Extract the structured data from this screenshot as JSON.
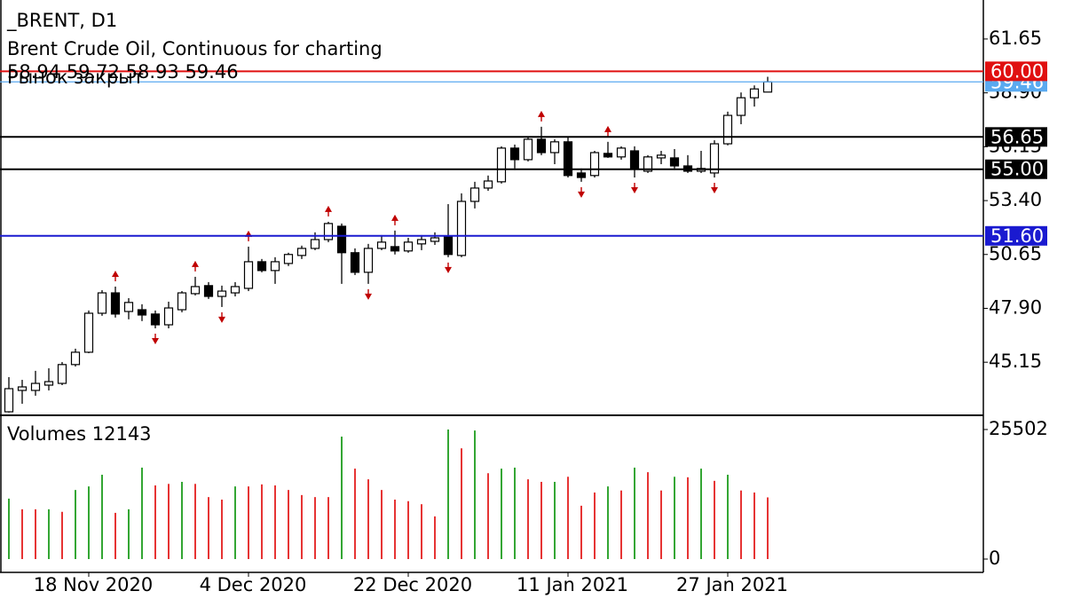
{
  "chart_data": {
    "type": "candlestick",
    "symbol": "_BRENT, D1",
    "title": "Brent Crude Oil, Continuous for charting",
    "status": "Рынок закрыт",
    "categories": [
      null,
      null,
      null,
      null,
      null,
      null,
      "18 Nov 2020",
      null,
      null,
      null,
      null,
      null,
      null,
      null,
      null,
      null,
      null,
      null,
      "4 Dec 2020",
      null,
      null,
      null,
      null,
      null,
      null,
      null,
      null,
      null,
      null,
      null,
      "22 Dec 2020",
      null,
      null,
      null,
      null,
      null,
      null,
      null,
      null,
      null,
      null,
      null,
      "11 Jan 2021",
      null,
      null,
      null,
      null,
      null,
      null,
      null,
      null,
      null,
      null,
      null,
      "27 Jan 2021",
      null,
      null,
      null
    ],
    "open": [
      42.62,
      43.71,
      43.71,
      43.98,
      44.07,
      45.03,
      45.66,
      47.65,
      48.69,
      47.74,
      47.83,
      47.61,
      47.06,
      47.83,
      48.65,
      49.06,
      48.51,
      48.69,
      48.92,
      50.28,
      49.83,
      50.19,
      50.6,
      50.96,
      51.41,
      52.09,
      50.74,
      49.74,
      50.96,
      51.05,
      50.83,
      51.19,
      51.32,
      51.55,
      50.6,
      53.36,
      54.04,
      54.36,
      56.08,
      55.49,
      56.53,
      55.85,
      56.4,
      54.81,
      54.68,
      55.81,
      55.63,
      55.94,
      54.9,
      55.58,
      55.58,
      55.17,
      54.9,
      54.81,
      56.3,
      57.75,
      58.65,
      58.94
    ],
    "high": [
      44.39,
      44.25,
      44.71,
      44.84,
      45.16,
      45.84,
      47.79,
      48.83,
      49.01,
      48.42,
      48.11,
      47.79,
      48.24,
      48.78,
      49.51,
      49.24,
      49.06,
      49.24,
      51.05,
      50.42,
      50.51,
      50.74,
      51.1,
      51.78,
      52.32,
      52.23,
      50.96,
      51.19,
      51.64,
      51.87,
      51.5,
      51.64,
      51.78,
      53.22,
      53.77,
      54.36,
      54.68,
      56.17,
      56.26,
      56.62,
      57.17,
      56.53,
      56.62,
      55.04,
      55.94,
      56.4,
      56.17,
      56.17,
      55.72,
      55.94,
      56.03,
      55.72,
      55.94,
      56.48,
      57.94,
      58.92,
      59.28,
      59.72
    ],
    "low": [
      42.58,
      43.03,
      43.44,
      43.71,
      43.98,
      44.93,
      45.61,
      47.52,
      47.43,
      47.34,
      47.25,
      46.88,
      46.88,
      47.7,
      48.56,
      48.38,
      47.97,
      48.51,
      48.78,
      49.74,
      49.15,
      50.06,
      50.42,
      50.87,
      51.28,
      49.15,
      49.6,
      49.15,
      50.87,
      50.65,
      50.74,
      50.87,
      51.14,
      50.51,
      50.51,
      53.0,
      53.9,
      54.27,
      55.04,
      55.4,
      55.72,
      55.26,
      54.58,
      54.36,
      54.58,
      55.58,
      55.49,
      54.58,
      54.81,
      55.26,
      55.04,
      54.81,
      54.81,
      54.58,
      56.22,
      57.3,
      58.2,
      58.93
    ],
    "close": [
      43.8,
      43.89,
      44.07,
      44.16,
      45.03,
      45.66,
      47.65,
      48.69,
      47.61,
      48.2,
      47.56,
      47.06,
      47.92,
      48.69,
      49.01,
      48.51,
      48.78,
      49.01,
      50.28,
      49.83,
      50.28,
      50.65,
      50.96,
      51.41,
      52.23,
      50.74,
      49.74,
      50.96,
      51.28,
      50.83,
      51.28,
      51.41,
      51.5,
      50.65,
      53.36,
      54.04,
      54.4,
      56.08,
      55.49,
      56.53,
      55.85,
      56.4,
      54.68,
      54.58,
      55.85,
      55.63,
      56.08,
      55.04,
      55.63,
      55.72,
      55.17,
      54.9,
      55.04,
      56.3,
      57.75,
      58.65,
      59.1,
      59.46
    ],
    "up_color": "#ffffff",
    "down_color": "#000000",
    "fractals_up": [
      8,
      14,
      18,
      24,
      29,
      40,
      45
    ],
    "fractals_down": [
      11,
      16,
      27,
      33,
      43,
      47,
      53
    ],
    "fractal_color": "#c00000",
    "ylim": [
      42.44,
      63.64
    ],
    "yticks": [
      61.65,
      {
        "value": 58.9,
        "label": "58.90"
      },
      56.15,
      {
        "value": 53.4,
        "label": "53.40"
      },
      50.65,
      {
        "value": 47.9,
        "label": "47.90"
      },
      45.15
    ],
    "levels": [
      {
        "value": 59.46,
        "color": "#5aaaf0"
      },
      {
        "value": 60,
        "label": "60.00",
        "color": "#e01010"
      },
      {
        "value": 56.65,
        "color": "#000000"
      },
      {
        "value": 55,
        "label": "55.00",
        "color": "#000000"
      },
      {
        "value": 51.6,
        "label": "51.60",
        "color": "#1a1ad0"
      }
    ],
    "volume": {
      "title": "Volumes",
      "values": [
        11900,
        9800,
        9800,
        9800,
        9300,
        13600,
        14300,
        16600,
        9100,
        9800,
        18000,
        14500,
        14800,
        15200,
        14800,
        12200,
        11700,
        14300,
        14300,
        14700,
        14500,
        13600,
        12600,
        12200,
        12200,
        24100,
        17800,
        15700,
        13600,
        11700,
        11400,
        10800,
        8400,
        25502,
        21800,
        25300,
        16900,
        17800,
        18000,
        15700,
        15200,
        15200,
        16200,
        10500,
        13100,
        14300,
        13500,
        18000,
        17100,
        13500,
        16200,
        16100,
        17800,
        15400,
        16600,
        13500,
        13100,
        12143
      ],
      "colors": [
        "#009000",
        "#e00000",
        "#e00000",
        "#009000",
        "#e00000",
        "#009000",
        "#009000",
        "#009000",
        "#e00000",
        "#009000",
        "#009000",
        "#e00000",
        "#e00000",
        "#009000",
        "#e00000",
        "#e00000",
        "#e00000",
        "#009000",
        "#e00000",
        "#e00000",
        "#e00000",
        "#e00000",
        "#e00000",
        "#e00000",
        "#e00000",
        "#009000",
        "#e00000",
        "#e00000",
        "#e00000",
        "#e00000",
        "#e00000",
        "#e00000",
        "#e00000",
        "#009000",
        "#e00000",
        "#009000",
        "#e00000",
        "#009000",
        "#009000",
        "#e00000",
        "#e00000",
        "#009000",
        "#e00000",
        "#e00000",
        "#e00000",
        "#009000",
        "#e00000",
        "#009000",
        "#e00000",
        "#e00000",
        "#009000",
        "#e00000",
        "#009000",
        "#e00000",
        "#009000",
        "#e00000",
        "#e00000",
        "#e00000"
      ],
      "ylim": [
        -2620,
        27948
      ],
      "yticks": [
        25502,
        0
      ]
    }
  }
}
